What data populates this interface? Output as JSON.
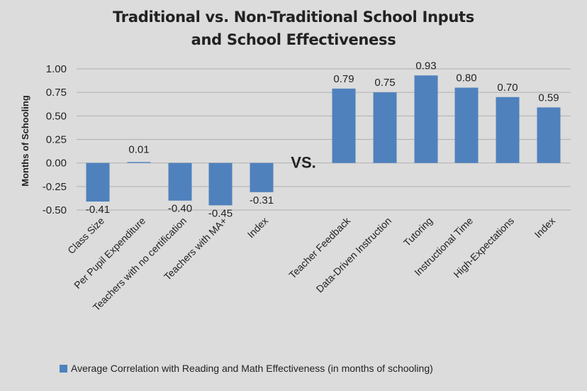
{
  "colors": {
    "bar": "#4f81bd",
    "grid": "#b0b0b0",
    "background": "#dcdcdc"
  },
  "chart_data": {
    "type": "bar",
    "title_lines": [
      "Traditional vs. Non-Traditional School Inputs",
      "and School Effectiveness"
    ],
    "ylabel": "Months of Schooling",
    "xlabel": "",
    "ylim": [
      -0.5,
      1.0
    ],
    "yticks": [
      "1.00",
      "0.75",
      "0.50",
      "0.25",
      "0.00",
      "-0.25",
      "-0.50"
    ],
    "grid": true,
    "legend_position": "bottom",
    "annotation": "VS.",
    "categories": [
      "Class Size",
      "Per Pupil Expenditure",
      "Teachers with no certification",
      "Teachers with MA+",
      "Index",
      "Teacher Feedback",
      "Data-Driven Instruction",
      "Tutoring",
      "Instructional Time",
      "High-Expectations",
      "Index"
    ],
    "series": [
      {
        "name": "Average Correlation with Reading and Math Effectiveness (in months of schooling)",
        "values": [
          -0.41,
          0.01,
          -0.4,
          -0.45,
          -0.31,
          0.79,
          0.75,
          0.93,
          0.8,
          0.7,
          0.59
        ],
        "value_labels": [
          "-0.41",
          "0.01",
          "-0.40",
          "-0.45",
          "-0.31",
          "0.79",
          "0.75",
          "0.93",
          "0.80",
          "0.70",
          "0.59"
        ]
      }
    ]
  }
}
